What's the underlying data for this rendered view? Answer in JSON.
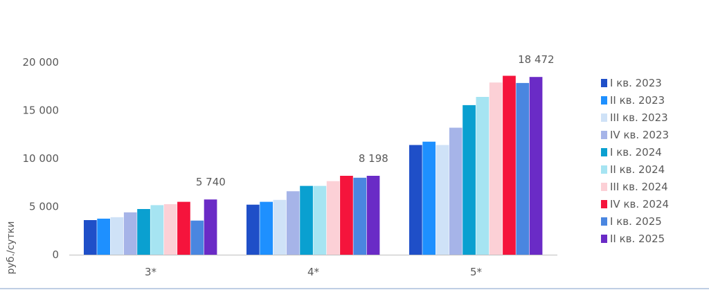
{
  "chart_data": {
    "type": "bar",
    "title": "",
    "xlabel": "",
    "ylabel": "руб./сутки",
    "ylim": [
      0,
      20000
    ],
    "yticks": [
      0,
      5000,
      10000,
      15000,
      20000
    ],
    "ytick_labels": [
      "0",
      "5 000",
      "10 000",
      "15 000",
      "20 000"
    ],
    "grid": false,
    "legend_position": "right",
    "categories": [
      "3*",
      "4*",
      "5*"
    ],
    "series": [
      {
        "name": "I кв. 2023",
        "color": "#1f4fc8",
        "values": [
          3600,
          5200,
          11400
        ]
      },
      {
        "name": "II кв. 2023",
        "color": "#1e90ff",
        "values": [
          3750,
          5500,
          11750
        ]
      },
      {
        "name": "III кв. 2023",
        "color": "#cfe2f7",
        "values": [
          3900,
          5700,
          11400
        ]
      },
      {
        "name": "IV кв. 2023",
        "color": "#a6b4e8",
        "values": [
          4400,
          6600,
          13200
        ]
      },
      {
        "name": "I кв. 2024",
        "color": "#0aa0d0",
        "values": [
          4750,
          7150,
          15550
        ]
      },
      {
        "name": "II кв. 2024",
        "color": "#a6e4f2",
        "values": [
          5150,
          7150,
          16400
        ]
      },
      {
        "name": "III кв. 2024",
        "color": "#fcd0d6",
        "values": [
          5250,
          7650,
          17900
        ]
      },
      {
        "name": "IV кв. 2024",
        "color": "#f5143c",
        "values": [
          5500,
          8200,
          18600
        ]
      },
      {
        "name": "I кв. 2025",
        "color": "#4a86e0",
        "values": [
          3550,
          8000,
          17850
        ]
      },
      {
        "name": "II кв. 2025",
        "color": "#6a2bc6",
        "values": [
          5740,
          8198,
          18472
        ]
      }
    ],
    "annotations": [
      "5 740",
      "8 198",
      "18 472"
    ]
  }
}
